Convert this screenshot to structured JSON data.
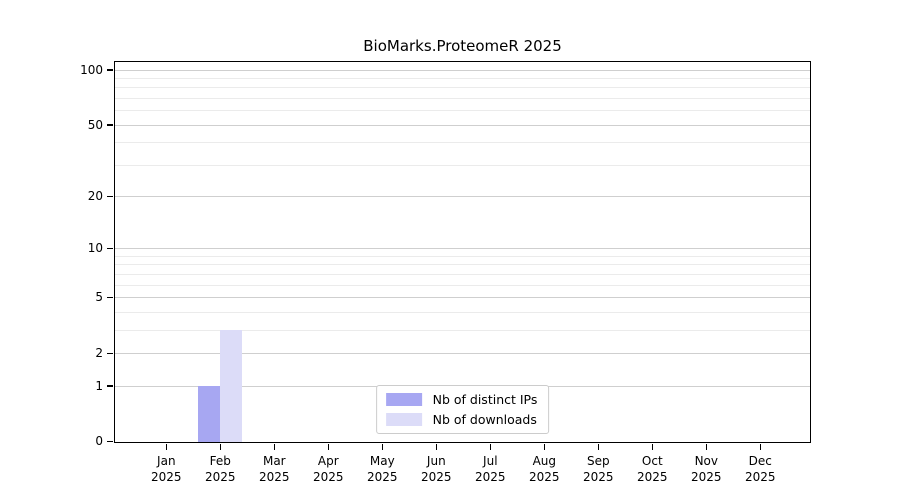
{
  "chart_data": {
    "type": "bar",
    "title": "BioMarks.ProteomeR 2025",
    "categories": [
      "Jan",
      "Feb",
      "Mar",
      "Apr",
      "May",
      "Jun",
      "Jul",
      "Aug",
      "Sep",
      "Oct",
      "Nov",
      "Dec"
    ],
    "category_year_label": "2025",
    "series": [
      {
        "name": "Nb of distinct IPs",
        "color": "#a7a7f2",
        "values": [
          0,
          1,
          0,
          0,
          0,
          0,
          0,
          0,
          0,
          0,
          0,
          0
        ]
      },
      {
        "name": "Nb of downloads",
        "color": "#dcdcf8",
        "values": [
          0,
          3,
          0,
          0,
          0,
          0,
          0,
          0,
          0,
          0,
          0,
          0
        ]
      }
    ],
    "xlabel": "",
    "ylabel": "",
    "yscale": "log1p",
    "ylim": [
      0,
      110
    ],
    "y_major_ticks": [
      0,
      1,
      2,
      5,
      10,
      20,
      50,
      100
    ],
    "y_minor_gridlines": [
      3,
      4,
      6,
      7,
      8,
      9,
      30,
      40,
      60,
      70,
      80,
      90
    ],
    "grid": true,
    "legend_position": "lower center"
  },
  "style": {
    "major_grid_color": "#cfcfcf",
    "minor_grid_color": "#ebebeb",
    "spine_color": "#000000",
    "text_color": "#000000",
    "legend_border_color": "#cccccc",
    "background": "#ffffff"
  }
}
